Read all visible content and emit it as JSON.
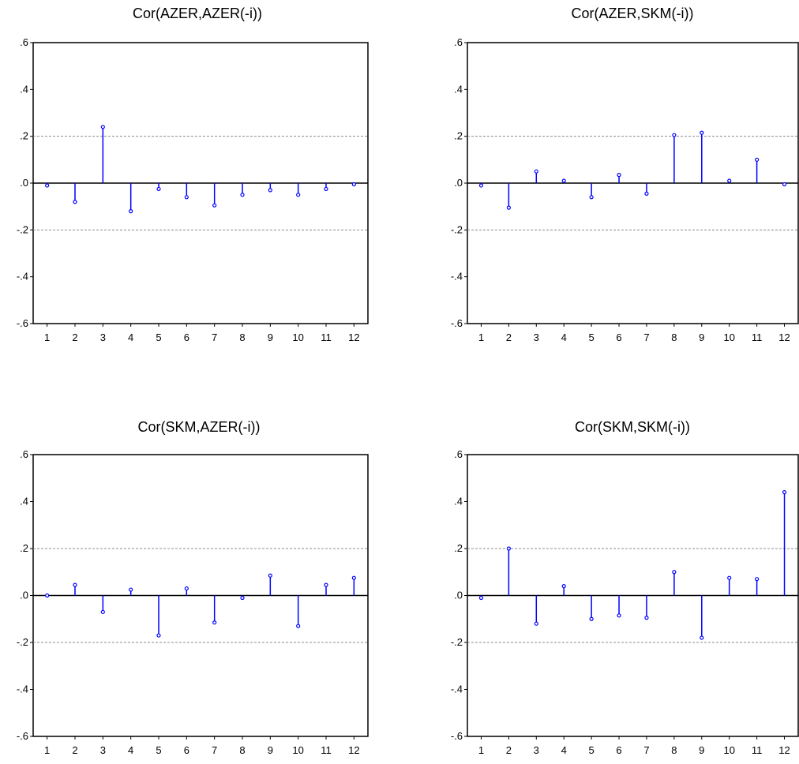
{
  "colors": {
    "spike": "#0000ff",
    "axis": "#000000",
    "band": "#8c8c8c",
    "background": "#ffffff"
  },
  "chart_data": [
    {
      "type": "bar",
      "title": "Cor(AZER,AZER(-i))",
      "categories": [
        "1",
        "2",
        "3",
        "4",
        "5",
        "6",
        "7",
        "8",
        "9",
        "10",
        "11",
        "12"
      ],
      "values": [
        -0.01,
        -0.08,
        0.24,
        -0.12,
        -0.025,
        -0.06,
        -0.095,
        -0.05,
        -0.03,
        -0.05,
        -0.025,
        -0.005
      ],
      "bands": [
        0.2,
        -0.2
      ],
      "ylim": [
        -0.6,
        0.6
      ],
      "yticks": [
        ".6",
        ".4",
        ".2",
        ".0",
        "-.2",
        "-.4",
        "-.6"
      ],
      "grid": false
    },
    {
      "type": "bar",
      "title": "Cor(AZER,SKM(-i))",
      "categories": [
        "1",
        "2",
        "3",
        "4",
        "5",
        "6",
        "7",
        "8",
        "9",
        "10",
        "11",
        "12"
      ],
      "values": [
        -0.01,
        -0.105,
        0.05,
        0.01,
        -0.06,
        0.035,
        -0.045,
        0.205,
        0.215,
        0.01,
        0.1,
        -0.005
      ],
      "bands": [
        0.2,
        -0.2
      ],
      "ylim": [
        -0.6,
        0.6
      ],
      "yticks": [
        ".6",
        ".4",
        ".2",
        ".0",
        "-.2",
        "-.4",
        "-.6"
      ],
      "grid": false
    },
    {
      "type": "bar",
      "title": "Cor(SKM,AZER(-i))",
      "categories": [
        "1",
        "2",
        "3",
        "4",
        "5",
        "6",
        "7",
        "8",
        "9",
        "10",
        "11",
        "12"
      ],
      "values": [
        0.0,
        0.045,
        -0.07,
        0.025,
        -0.17,
        0.03,
        -0.115,
        -0.01,
        0.085,
        -0.13,
        0.045,
        0.075
      ],
      "bands": [
        0.2,
        -0.2
      ],
      "ylim": [
        -0.6,
        0.6
      ],
      "yticks": [
        ".6",
        ".4",
        ".2",
        ".0",
        "-.2",
        "-.4",
        "-.6"
      ],
      "grid": false
    },
    {
      "type": "bar",
      "title": "Cor(SKM,SKM(-i))",
      "categories": [
        "1",
        "2",
        "3",
        "4",
        "5",
        "6",
        "7",
        "8",
        "9",
        "10",
        "11",
        "12"
      ],
      "values": [
        -0.01,
        0.2,
        -0.12,
        0.04,
        -0.1,
        -0.085,
        -0.095,
        0.1,
        -0.18,
        0.075,
        0.07,
        0.44
      ],
      "bands": [
        0.2,
        -0.2
      ],
      "ylim": [
        -0.6,
        0.6
      ],
      "yticks": [
        ".6",
        ".4",
        ".2",
        ".0",
        "-.2",
        "-.4",
        "-.6"
      ],
      "grid": false
    }
  ]
}
